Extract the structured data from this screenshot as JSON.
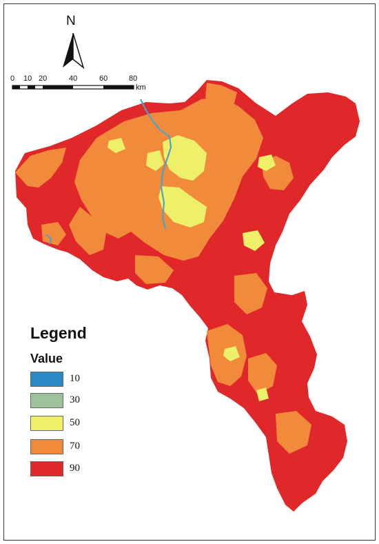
{
  "north_arrow": {
    "label": "N"
  },
  "scale_bar": {
    "ticks": [
      "0",
      "10",
      "20",
      "40",
      "60",
      "80"
    ],
    "unit": "km"
  },
  "legend": {
    "title": "Legend",
    "subtitle": "Value",
    "items": [
      {
        "label": "10",
        "color": "#2b88c6"
      },
      {
        "label": "30",
        "color": "#9ec39b"
      },
      {
        "label": "50",
        "color": "#eef06a"
      },
      {
        "label": "70",
        "color": "#f28a3c"
      },
      {
        "label": "90",
        "color": "#e0282a"
      }
    ]
  },
  "map_colors": {
    "base": "#e0282a",
    "urban_fringe": "#f28a3c",
    "urban_core": "#eef06a",
    "river": "#4aa3c8"
  }
}
